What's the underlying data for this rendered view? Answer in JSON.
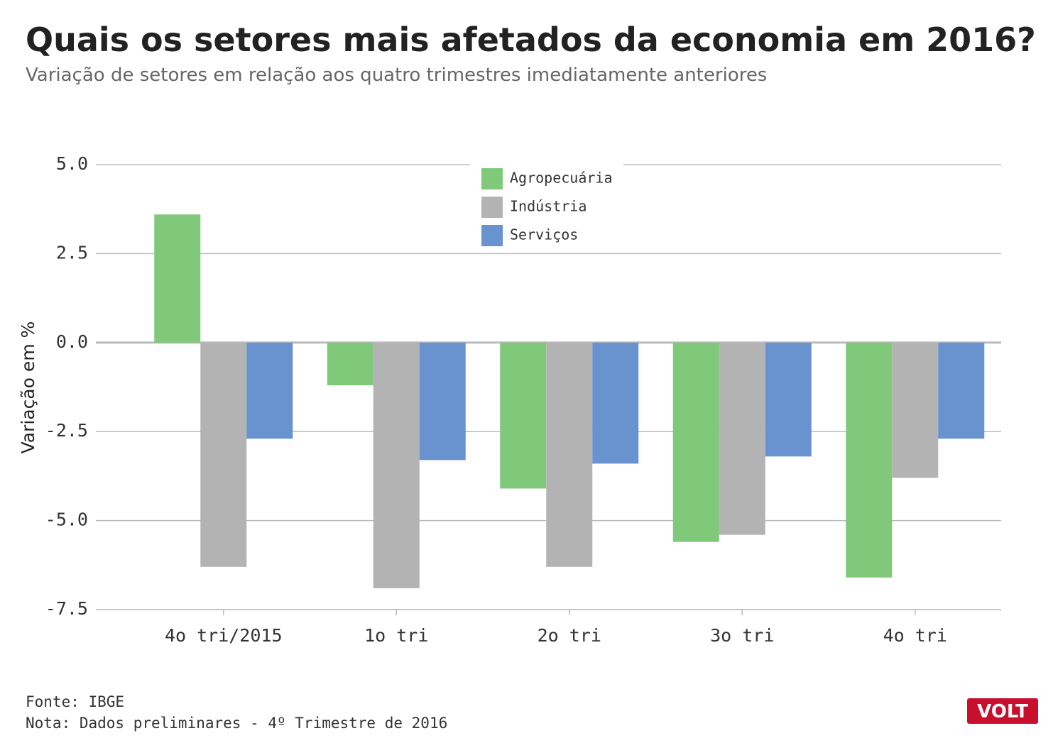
{
  "chart_data": {
    "type": "bar",
    "title": "Quais os setores mais afetados da economia em 2016?",
    "subtitle": "Variação de setores em relação aos quatro trimestres imediatamente anteriores",
    "y_label": "Variação em %",
    "categories": [
      "4o tri/2015",
      "1o tri",
      "2o tri",
      "3o tri",
      "4o tri"
    ],
    "series": [
      {
        "name": "Agropecuária",
        "color": "#80c97b",
        "values": [
          3.6,
          -1.2,
          -4.1,
          -5.6,
          -6.6
        ]
      },
      {
        "name": "Indústria",
        "color": "#b3b3b3",
        "values": [
          -6.3,
          -6.9,
          -6.3,
          -5.4,
          -3.8
        ]
      },
      {
        "name": "Serviços",
        "color": "#6893cf",
        "values": [
          -2.7,
          -3.3,
          -3.4,
          -3.2,
          -2.7
        ]
      }
    ],
    "ylim": [
      -7.5,
      5
    ],
    "yticks": [
      {
        "value": 5,
        "label": "5.0"
      },
      2.5,
      {
        "value": 0,
        "label": "0.0"
      },
      -2.5,
      {
        "value": -5,
        "label": "-5.0"
      },
      -7.5
    ],
    "grid": true,
    "legend": "top-center",
    "source": "Fonte: IBGE",
    "note": "Nota: Dados preliminares - 4º Trimestre de 2016",
    "logo": "VOLT"
  }
}
